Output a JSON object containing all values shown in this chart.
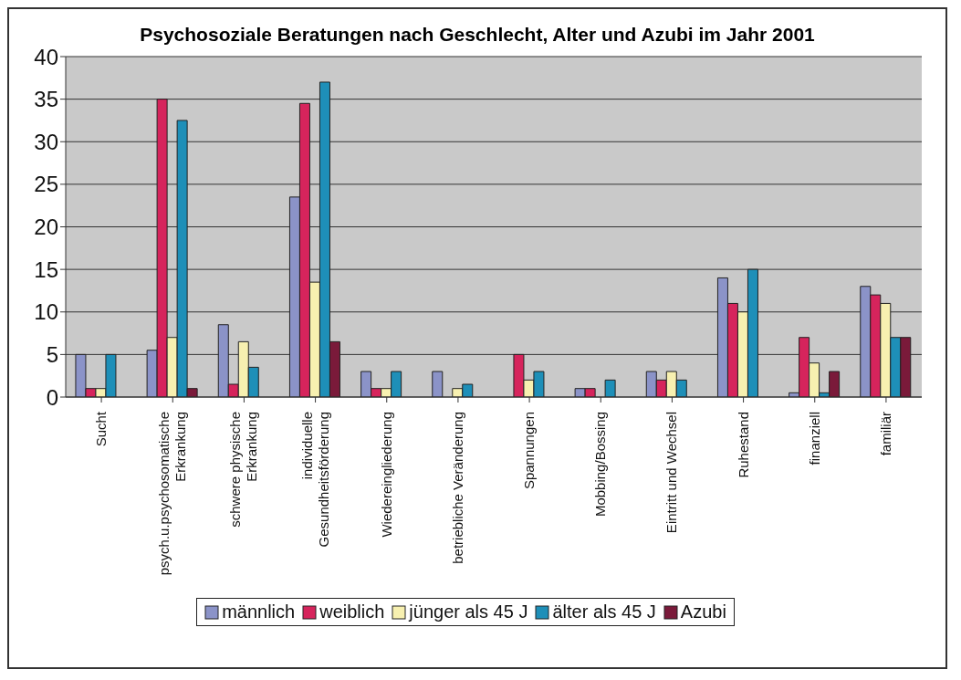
{
  "chart_data": {
    "type": "bar",
    "title": "Psychosoziale Beratungen nach Geschlecht, Alter und Azubi im Jahr 2001",
    "categories": [
      "Sucht",
      "psych.u.psychosomatische\nErkrankung",
      "schwere physische\nErkrankung",
      "individuelle\nGesundheitsförderung",
      "Wiedereingliederung",
      "betriebliche Veränderung",
      "Spannungen",
      "Mobbing/Bossing",
      "Eintritt und Wechsel",
      "Ruhestand",
      "finanziell",
      "familiär"
    ],
    "series": [
      {
        "name": "männlich",
        "color": "#8b93c8",
        "values": [
          5,
          5.5,
          8.5,
          23.5,
          3,
          3,
          0,
          1,
          3,
          14,
          0.5,
          13
        ]
      },
      {
        "name": "weiblich",
        "color": "#d6245c",
        "values": [
          1,
          35,
          1.5,
          34.5,
          1,
          0,
          5,
          1,
          2,
          11,
          7,
          12
        ]
      },
      {
        "name": "jünger als 45 J",
        "color": "#f7f0b0",
        "values": [
          1,
          7,
          6.5,
          13.5,
          1,
          1,
          2,
          0,
          3,
          10,
          4,
          11
        ]
      },
      {
        "name": "älter als 45 J",
        "color": "#1e8fb8",
        "values": [
          5,
          32.5,
          3.5,
          37,
          3,
          1.5,
          3,
          2,
          2,
          15,
          0.5,
          7
        ]
      },
      {
        "name": "Azubi",
        "color": "#7a1a3a",
        "values": [
          0,
          1,
          0,
          6.5,
          0,
          0,
          0,
          0,
          0,
          0,
          3,
          7
        ]
      }
    ],
    "ylim": [
      0,
      40
    ],
    "yticks": [
      0,
      5,
      10,
      15,
      20,
      25,
      30,
      35,
      40
    ],
    "grid": "y",
    "legend": "bottom"
  }
}
